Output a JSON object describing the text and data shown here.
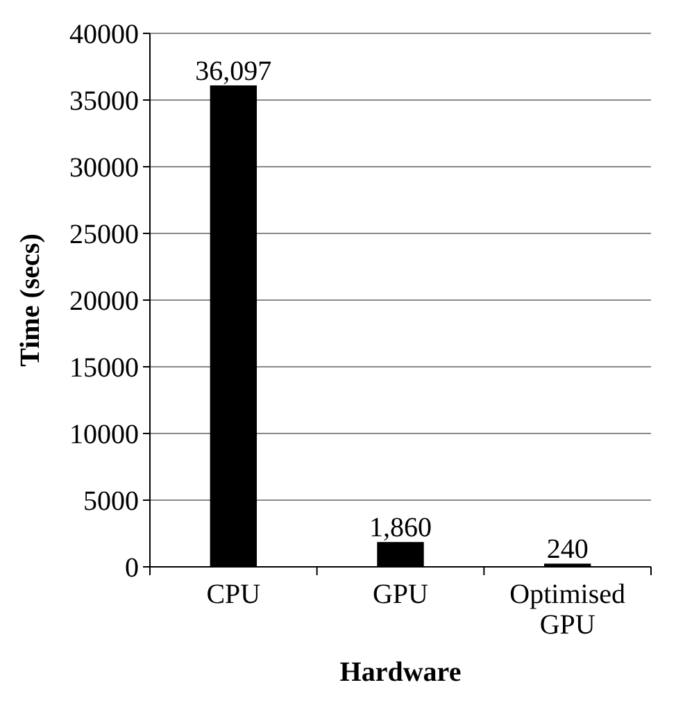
{
  "chart_data": {
    "type": "bar",
    "xlabel": "Hardware",
    "ylabel": "Time (secs)",
    "categories": [
      "CPU",
      "GPU",
      "Optimised GPU"
    ],
    "values": [
      36097,
      1860,
      240
    ],
    "value_labels": [
      "36,097",
      "1,860",
      "240"
    ],
    "color": "#000000",
    "ylim": [
      0,
      40000
    ],
    "yticks": [
      0,
      5000,
      10000,
      15000,
      20000,
      25000,
      30000,
      35000,
      40000
    ],
    "grid": "y"
  }
}
